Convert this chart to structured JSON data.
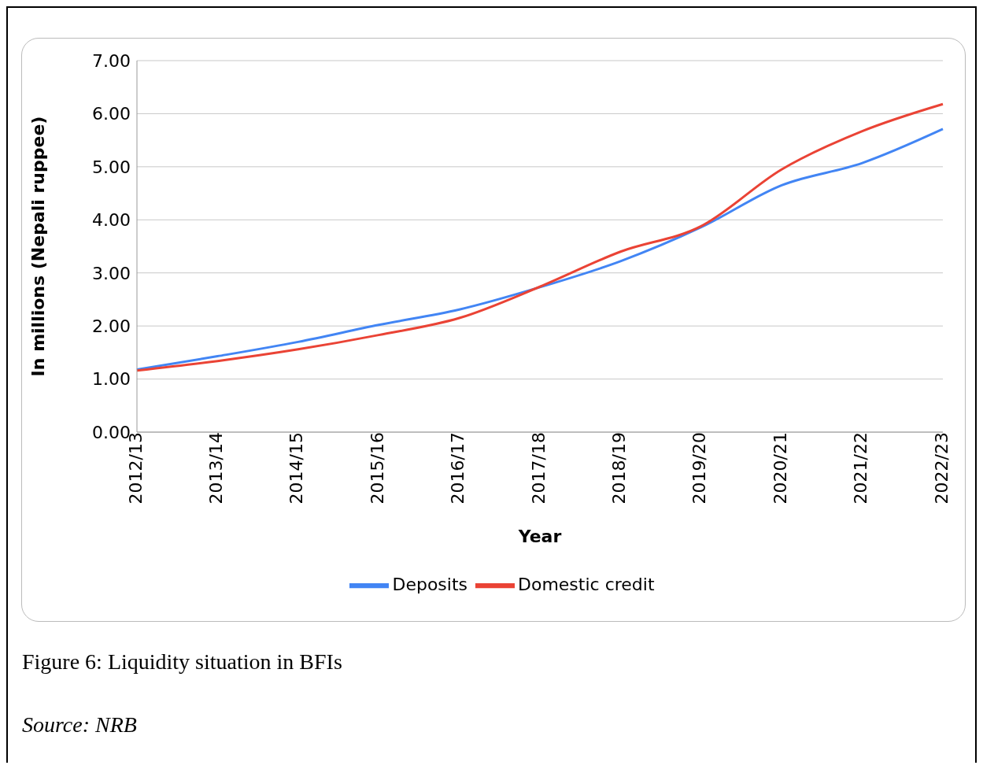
{
  "chart_data": {
    "type": "line",
    "ylabel": "In millions (Nepali ruppee)",
    "xlabel": "Year",
    "categories": [
      "2012/13",
      "2013/14",
      "2014/15",
      "2015/16",
      "2016/17",
      "2017/18",
      "2018/19",
      "2019/20",
      "2020/21",
      "2021/22",
      "2022/23"
    ],
    "series": [
      {
        "name": "Deposits",
        "color": "#4285f4",
        "values": [
          1.18,
          1.43,
          1.7,
          2.02,
          2.31,
          2.73,
          3.22,
          3.86,
          4.65,
          5.07,
          5.71
        ]
      },
      {
        "name": "Domestic credit",
        "color": "#ea4335",
        "values": [
          1.16,
          1.34,
          1.56,
          1.83,
          2.15,
          2.74,
          3.4,
          3.88,
          4.95,
          5.67,
          6.18
        ]
      }
    ],
    "ylim": [
      0,
      7
    ],
    "yticks": [
      {
        "value": 0,
        "label": "0.00"
      },
      {
        "value": 1,
        "label": "1.00"
      },
      {
        "value": 2,
        "label": "2.00"
      },
      {
        "value": 3,
        "label": "3.00"
      },
      {
        "value": 4,
        "label": "4.00"
      },
      {
        "value": 5,
        "label": "5.00"
      },
      {
        "value": 6,
        "label": "6.00"
      },
      {
        "value": 7,
        "label": "7.00"
      }
    ],
    "grid": "y",
    "legend": "bottom",
    "marker": "none",
    "line_style": "solid",
    "annotations": [
      "Figure 6: Liquidity situation in BFIs",
      "Source: NRB"
    ]
  }
}
